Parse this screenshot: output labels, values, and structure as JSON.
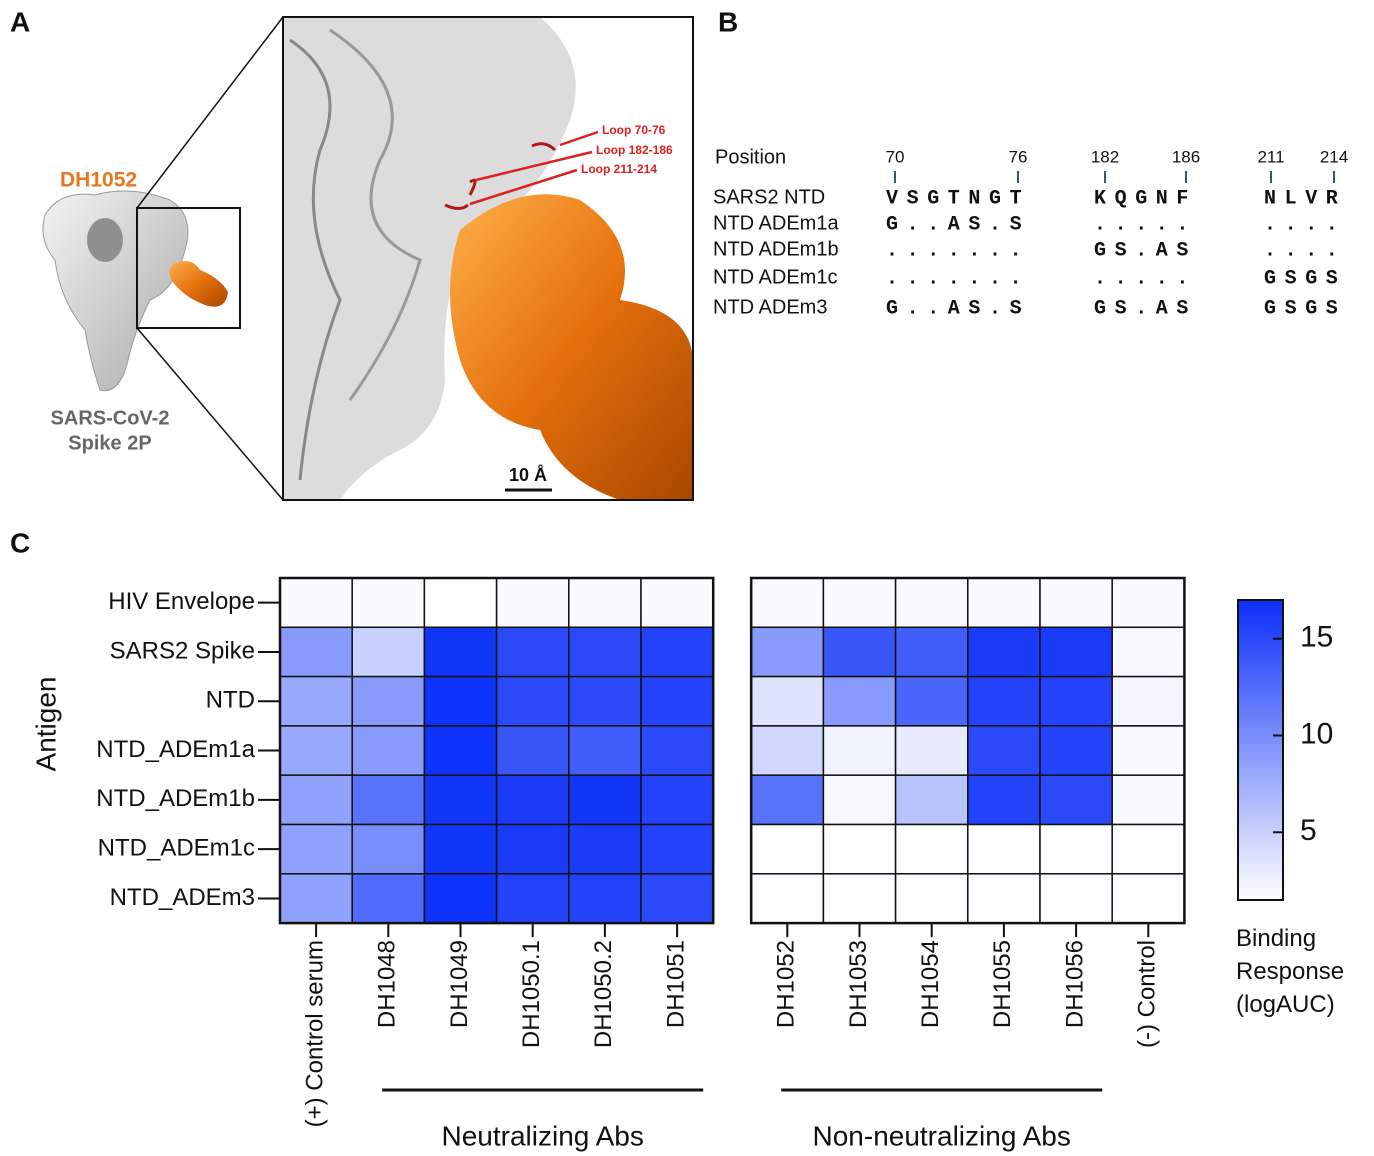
{
  "panels": {
    "A": {
      "label": "A",
      "antibody": "DH1052",
      "spike_lines": [
        "SARS-CoV-2",
        "Spike 2P"
      ],
      "loops": [
        "Loop 70-76",
        "Loop 182-186",
        "Loop 211-214"
      ],
      "scale_bar": "10 Å"
    },
    "B": {
      "label": "B",
      "position_label": "Position",
      "positions": [
        70,
        76,
        182,
        186,
        211,
        214
      ],
      "rows": [
        {
          "name": "SARS2 NTD",
          "segments": [
            "VSGTNGT",
            "KQGNF",
            "NLVR"
          ]
        },
        {
          "name": "NTD ADEm1a",
          "segments": [
            "G..AS.S",
            ".....",
            "...."
          ]
        },
        {
          "name": "NTD ADEm1b",
          "segments": [
            ".......",
            "GS.AS",
            "...."
          ]
        },
        {
          "name": "NTD ADEm1c",
          "segments": [
            ".......",
            ".....",
            "GSGS"
          ]
        },
        {
          "name": "NTD ADEm3",
          "segments": [
            "G..AS.S",
            "GS.AS",
            "GSGS"
          ]
        }
      ]
    },
    "C": {
      "label": "C"
    }
  },
  "chart_data": {
    "type": "heatmap",
    "y_label": "Antigen",
    "x_categories": [
      "(+) Control serum",
      "DH1048",
      "DH1049",
      "DH1050.1",
      "DH1050.2",
      "DH1051",
      "DH1052",
      "DH1053",
      "DH1054",
      "DH1055",
      "DH1056",
      "(-) Control"
    ],
    "y_categories": [
      "HIV Envelope",
      "SARS2 Spike",
      "NTD",
      "NTD_ADEm1a",
      "NTD_ADEm1b",
      "NTD_ADEm1c",
      "NTD_ADEm3"
    ],
    "groups": [
      {
        "name": "Neutralizing Abs",
        "members": [
          "DH1048",
          "DH1049",
          "DH1050.1",
          "DH1050.2",
          "DH1051"
        ]
      },
      {
        "name": "Non-neutralizing Abs",
        "members": [
          "DH1052",
          "DH1053",
          "DH1054",
          "DH1055",
          "DH1056"
        ]
      }
    ],
    "values": [
      [
        1.8,
        1.8,
        1.5,
        1.8,
        1.8,
        1.8,
        1.8,
        1.8,
        1.8,
        1.8,
        1.8,
        1.8
      ],
      [
        9,
        5,
        16.5,
        15,
        15,
        15.5,
        9,
        14,
        13.5,
        16,
        16,
        2
      ],
      [
        8,
        9,
        16.8,
        15,
        15,
        15.5,
        3.5,
        9,
        13,
        15.5,
        15.5,
        2.2
      ],
      [
        8,
        9,
        16.8,
        14,
        13.5,
        15,
        4.5,
        2.5,
        3,
        15,
        15.5,
        1.8
      ],
      [
        8.5,
        12,
        16.5,
        16,
        16.5,
        15.5,
        12,
        2,
        6,
        15.5,
        15,
        1.8
      ],
      [
        8.5,
        10,
        16.5,
        16,
        16,
        15.5,
        1.6,
        1.6,
        1.6,
        1.6,
        1.6,
        1.6
      ],
      [
        8.5,
        12.5,
        16.8,
        15.5,
        15.5,
        15,
        1.6,
        1.6,
        1.6,
        1.6,
        1.6,
        1.6
      ]
    ],
    "colorbar": {
      "title": "Binding Response (logAUC)",
      "zlim": [
        1.5,
        17
      ],
      "ticks": [
        5,
        10,
        15
      ],
      "colors": [
        "#ffffff",
        "#0a2ff8"
      ]
    }
  }
}
